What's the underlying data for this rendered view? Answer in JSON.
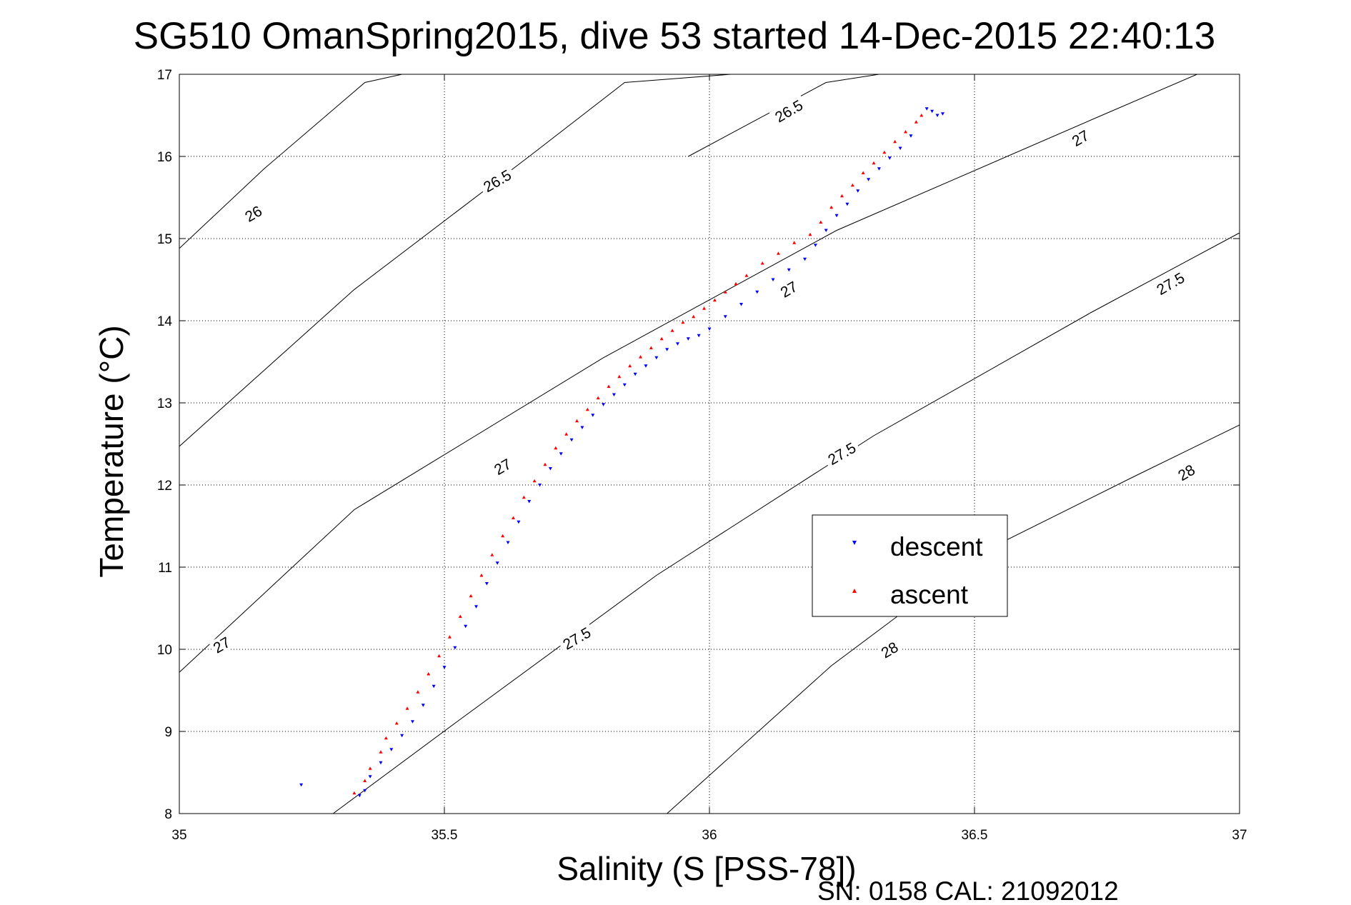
{
  "chart_data": {
    "type": "scatter",
    "title": "SG510 OmanSpring2015, dive 53 started 14-Dec-2015 22:40:13",
    "xlabel": "Salinity (S [PSS-78])",
    "ylabel": "Temperature (°C)",
    "xlim": [
      35,
      37
    ],
    "ylim": [
      8,
      17
    ],
    "xticks": [
      "35",
      "35.5",
      "36",
      "36.5",
      "37"
    ],
    "yticks": [
      "8",
      "9",
      "10",
      "11",
      "12",
      "13",
      "14",
      "15",
      "16",
      "17"
    ],
    "grid": true,
    "legend_position": "right-middle",
    "footer": "SN: 0158  CAL: 21092012",
    "colors": {
      "descent": "#0000ff",
      "ascent": "#ff0000",
      "contour": "#000000"
    },
    "contours": [
      {
        "level": "26",
        "points": [
          [
            35.0,
            14.88
          ],
          [
            35.16,
            15.85
          ],
          [
            35.35,
            16.9
          ],
          [
            35.42,
            17.0
          ]
        ]
      },
      {
        "level": "26.5",
        "points": [
          [
            35.0,
            12.47
          ],
          [
            35.33,
            14.38
          ],
          [
            35.66,
            16.0
          ],
          [
            35.84,
            16.9
          ],
          [
            36.04,
            17.0
          ]
        ]
      },
      {
        "level": "26.5",
        "points": [
          [
            35.96,
            16.0
          ],
          [
            36.22,
            16.9
          ],
          [
            36.32,
            17.0
          ]
        ]
      },
      {
        "level": "27",
        "points": [
          [
            35.0,
            9.72
          ],
          [
            35.33,
            11.7
          ],
          [
            35.8,
            13.55
          ],
          [
            36.24,
            15.1
          ],
          [
            36.74,
            16.5
          ],
          [
            36.92,
            17.0
          ]
        ]
      },
      {
        "level": "27.5",
        "points": [
          [
            35.29,
            8.0
          ],
          [
            35.52,
            9.1
          ],
          [
            35.9,
            10.9
          ],
          [
            36.31,
            12.6
          ],
          [
            36.72,
            14.1
          ],
          [
            37.0,
            15.07
          ]
        ]
      },
      {
        "level": "28",
        "points": [
          [
            35.92,
            8.0
          ],
          [
            36.23,
            9.8
          ],
          [
            36.52,
            11.2
          ],
          [
            36.8,
            12.1
          ],
          [
            37.0,
            12.73
          ]
        ]
      }
    ],
    "contour_labels": [
      {
        "text": "26",
        "at": [
          35.14,
          15.3
        ]
      },
      {
        "text": "26.5",
        "at": [
          35.6,
          15.7
        ]
      },
      {
        "text": "26.5",
        "at": [
          36.15,
          16.55
        ]
      },
      {
        "text": "27",
        "at": [
          35.08,
          10.05
        ]
      },
      {
        "text": "27",
        "at": [
          35.61,
          12.22
        ]
      },
      {
        "text": "27",
        "at": [
          36.15,
          14.38
        ]
      },
      {
        "text": "27",
        "at": [
          36.7,
          16.22
        ]
      },
      {
        "text": "27.5",
        "at": [
          35.75,
          10.13
        ]
      },
      {
        "text": "27.5",
        "at": [
          36.25,
          12.38
        ]
      },
      {
        "text": "27.5",
        "at": [
          36.87,
          14.45
        ]
      },
      {
        "text": "28",
        "at": [
          36.34,
          9.99
        ]
      },
      {
        "text": "28",
        "at": [
          36.9,
          12.15
        ]
      }
    ],
    "series": [
      {
        "name": "descent",
        "x": [
          35.23,
          35.34,
          35.35,
          35.36,
          35.38,
          35.4,
          35.42,
          35.44,
          35.46,
          35.48,
          35.5,
          35.52,
          35.54,
          35.56,
          35.58,
          35.6,
          35.62,
          35.64,
          35.66,
          35.68,
          35.7,
          35.72,
          35.74,
          35.76,
          35.78,
          35.8,
          35.82,
          35.84,
          35.86,
          35.88,
          35.9,
          35.92,
          35.94,
          35.96,
          35.98,
          36.0,
          36.03,
          36.06,
          36.09,
          36.12,
          36.15,
          36.18,
          36.2,
          36.22,
          36.24,
          36.26,
          36.28,
          36.3,
          36.32,
          36.34,
          36.36,
          36.38,
          36.41,
          36.42,
          36.43,
          36.44
        ],
        "y": [
          8.35,
          8.22,
          8.28,
          8.45,
          8.62,
          8.78,
          8.95,
          9.12,
          9.32,
          9.55,
          9.78,
          10.02,
          10.28,
          10.52,
          10.8,
          11.05,
          11.3,
          11.55,
          11.8,
          12.0,
          12.2,
          12.38,
          12.55,
          12.7,
          12.85,
          12.98,
          13.1,
          13.22,
          13.35,
          13.45,
          13.55,
          13.65,
          13.72,
          13.78,
          13.82,
          13.9,
          14.05,
          14.2,
          14.35,
          14.5,
          14.62,
          14.75,
          14.92,
          15.1,
          15.28,
          15.42,
          15.58,
          15.72,
          15.85,
          15.98,
          16.1,
          16.25,
          16.58,
          16.55,
          16.5,
          16.52
        ]
      },
      {
        "name": "ascent",
        "x": [
          35.33,
          35.35,
          35.36,
          35.38,
          35.39,
          35.41,
          35.43,
          35.45,
          35.47,
          35.49,
          35.51,
          35.53,
          35.55,
          35.57,
          35.59,
          35.61,
          35.63,
          35.65,
          35.67,
          35.69,
          35.71,
          35.73,
          35.75,
          35.77,
          35.79,
          35.81,
          35.83,
          35.85,
          35.87,
          35.89,
          35.91,
          35.93,
          35.95,
          35.97,
          35.99,
          36.01,
          36.03,
          36.05,
          36.07,
          36.1,
          36.13,
          36.16,
          36.19,
          36.21,
          36.23,
          36.25,
          36.27,
          36.29,
          36.31,
          36.33,
          36.35,
          36.37,
          36.39,
          36.4
        ],
        "y": [
          8.25,
          8.4,
          8.55,
          8.75,
          8.92,
          9.1,
          9.28,
          9.48,
          9.7,
          9.92,
          10.15,
          10.4,
          10.65,
          10.9,
          11.15,
          11.38,
          11.6,
          11.85,
          12.05,
          12.25,
          12.45,
          12.62,
          12.78,
          12.92,
          13.06,
          13.2,
          13.32,
          13.45,
          13.56,
          13.67,
          13.78,
          13.88,
          13.98,
          14.05,
          14.15,
          14.25,
          14.35,
          14.45,
          14.55,
          14.7,
          14.82,
          14.95,
          15.05,
          15.2,
          15.38,
          15.52,
          15.65,
          15.8,
          15.92,
          16.05,
          16.18,
          16.3,
          16.42,
          16.5
        ]
      }
    ]
  }
}
